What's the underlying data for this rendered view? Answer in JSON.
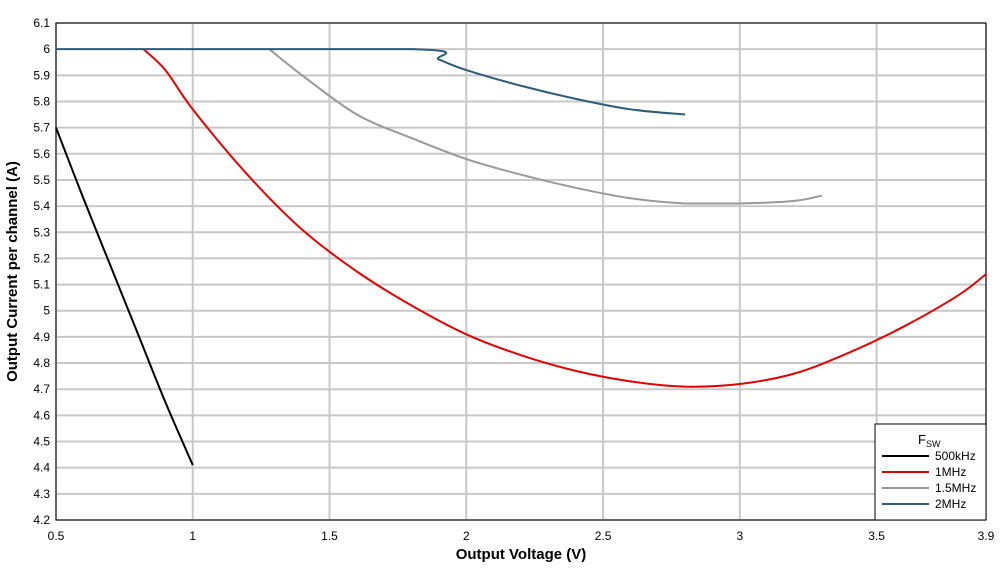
{
  "chart_data": {
    "type": "line",
    "title": "",
    "xlabel": "Output Voltage (V)",
    "ylabel": "Output Current per channel (A)",
    "xlim": [
      0.5,
      3.9
    ],
    "ylim": [
      4.2,
      6.1
    ],
    "x_ticks": [
      "0.5",
      "1",
      "1.5",
      "2",
      "2.5",
      "3",
      "3.5",
      "3.9"
    ],
    "y_ticks": [
      "4.2",
      "4.3",
      "4.4",
      "4.5",
      "4.6",
      "4.7",
      "4.8",
      "4.9",
      "5",
      "5.1",
      "5.2",
      "5.3",
      "5.4",
      "5.5",
      "5.6",
      "5.7",
      "5.8",
      "5.9",
      "6",
      "6.1"
    ],
    "grid": true,
    "legend": {
      "title_main": "F",
      "title_sub": "SW",
      "position": "bottom-right"
    },
    "series": [
      {
        "name": "500kHz",
        "color": "#000000",
        "x": [
          0.5,
          0.6,
          0.7,
          0.8,
          0.9,
          1.0
        ],
        "y": [
          5.7,
          5.43,
          5.17,
          4.91,
          4.65,
          4.41
        ]
      },
      {
        "name": "1MHz",
        "color": "#e00000",
        "x": [
          0.82,
          0.9,
          1.0,
          1.2,
          1.4,
          1.6,
          1.8,
          2.0,
          2.2,
          2.4,
          2.6,
          2.8,
          3.0,
          3.2,
          3.4,
          3.6,
          3.8,
          3.9
        ],
        "y": [
          6.0,
          5.92,
          5.77,
          5.52,
          5.31,
          5.15,
          5.02,
          4.91,
          4.83,
          4.77,
          4.73,
          4.71,
          4.72,
          4.76,
          4.84,
          4.94,
          5.06,
          5.14
        ]
      },
      {
        "name": "1.5MHz",
        "color": "#999999",
        "x": [
          1.28,
          1.4,
          1.6,
          1.8,
          2.0,
          2.2,
          2.4,
          2.6,
          2.8,
          3.0,
          3.2,
          3.3
        ],
        "y": [
          6.0,
          5.9,
          5.75,
          5.66,
          5.58,
          5.52,
          5.47,
          5.43,
          5.41,
          5.41,
          5.42,
          5.44
        ]
      },
      {
        "name": "2MHz",
        "color": "#2e5d78",
        "x": [
          0.5,
          1.8,
          1.9,
          2.0,
          2.2,
          2.4,
          2.6,
          2.8
        ],
        "y": [
          6.0,
          6.0,
          5.96,
          5.92,
          5.86,
          5.81,
          5.77,
          5.75
        ]
      }
    ]
  }
}
